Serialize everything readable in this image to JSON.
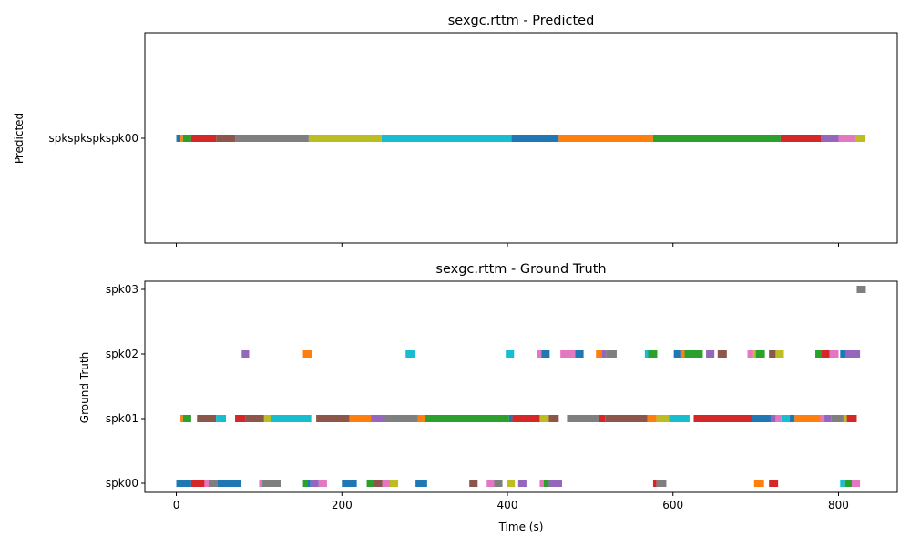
{
  "chart_data": [
    {
      "type": "timeline",
      "title": "sexgc.rttm - Predicted",
      "xlabel": "",
      "ylabel": "Predicted",
      "xlim": [
        -38,
        871
      ],
      "xticks": [
        0,
        200,
        400,
        600,
        800
      ],
      "show_xtick_labels": false,
      "rows": [
        "spkspkspkspk00"
      ],
      "segments": [
        {
          "row": "spkspkspkspk00",
          "start": 0,
          "end": 5,
          "color": "#1f77b4"
        },
        {
          "row": "spkspkspkspk00",
          "start": 5,
          "end": 8,
          "color": "#ff7f0e"
        },
        {
          "row": "spkspkspkspk00",
          "start": 8,
          "end": 18,
          "color": "#2ca02c"
        },
        {
          "row": "spkspkspkspk00",
          "start": 18,
          "end": 48,
          "color": "#d62728"
        },
        {
          "row": "spkspkspkspk00",
          "start": 48,
          "end": 71,
          "color": "#8c564b"
        },
        {
          "row": "spkspkspkspk00",
          "start": 71,
          "end": 160,
          "color": "#7f7f7f"
        },
        {
          "row": "spkspkspkspk00",
          "start": 160,
          "end": 248,
          "color": "#bcbd22"
        },
        {
          "row": "spkspkspkspk00",
          "start": 248,
          "end": 405,
          "color": "#17becf"
        },
        {
          "row": "spkspkspkspk00",
          "start": 405,
          "end": 462,
          "color": "#1f77b4"
        },
        {
          "row": "spkspkspkspk00",
          "start": 462,
          "end": 576,
          "color": "#ff7f0e"
        },
        {
          "row": "spkspkspkspk00",
          "start": 576,
          "end": 730,
          "color": "#2ca02c"
        },
        {
          "row": "spkspkspkspk00",
          "start": 730,
          "end": 779,
          "color": "#d62728"
        },
        {
          "row": "spkspkspkspk00",
          "start": 779,
          "end": 800,
          "color": "#9467bd"
        },
        {
          "row": "spkspkspkspk00",
          "start": 800,
          "end": 821,
          "color": "#e377c2"
        },
        {
          "row": "spkspkspkspk00",
          "start": 821,
          "end": 832,
          "color": "#bcbd22"
        }
      ]
    },
    {
      "type": "timeline",
      "title": "sexgc.rttm - Ground Truth",
      "xlabel": "Time (s)",
      "ylabel": "Ground Truth",
      "xlim": [
        -38,
        871
      ],
      "xticks": [
        0,
        200,
        400,
        600,
        800
      ],
      "show_xtick_labels": true,
      "rows": [
        "spk00",
        "spk01",
        "spk02",
        "spk03"
      ],
      "segments": [
        {
          "row": "spk00",
          "start": 0,
          "end": 18,
          "color": "#1f77b4"
        },
        {
          "row": "spk00",
          "start": 18,
          "end": 34,
          "color": "#d62728"
        },
        {
          "row": "spk00",
          "start": 34,
          "end": 39,
          "color": "#e377c2"
        },
        {
          "row": "spk00",
          "start": 39,
          "end": 50,
          "color": "#7f7f7f"
        },
        {
          "row": "spk00",
          "start": 50,
          "end": 78,
          "color": "#1f77b4"
        },
        {
          "row": "spk00",
          "start": 100,
          "end": 104,
          "color": "#e377c2"
        },
        {
          "row": "spk00",
          "start": 104,
          "end": 126,
          "color": "#7f7f7f"
        },
        {
          "row": "spk00",
          "start": 153,
          "end": 159,
          "color": "#2ca02c"
        },
        {
          "row": "spk00",
          "start": 159,
          "end": 162,
          "color": "#1f77b4"
        },
        {
          "row": "spk00",
          "start": 162,
          "end": 172,
          "color": "#9467bd"
        },
        {
          "row": "spk00",
          "start": 172,
          "end": 182,
          "color": "#e377c2"
        },
        {
          "row": "spk00",
          "start": 200,
          "end": 218,
          "color": "#1f77b4"
        },
        {
          "row": "spk00",
          "start": 230,
          "end": 239,
          "color": "#2ca02c"
        },
        {
          "row": "spk00",
          "start": 239,
          "end": 249,
          "color": "#8c564b"
        },
        {
          "row": "spk00",
          "start": 249,
          "end": 258,
          "color": "#e377c2"
        },
        {
          "row": "spk00",
          "start": 258,
          "end": 268,
          "color": "#bcbd22"
        },
        {
          "row": "spk00",
          "start": 289,
          "end": 303,
          "color": "#1f77b4"
        },
        {
          "row": "spk00",
          "start": 354,
          "end": 364,
          "color": "#8c564b"
        },
        {
          "row": "spk00",
          "start": 375,
          "end": 384,
          "color": "#e377c2"
        },
        {
          "row": "spk00",
          "start": 384,
          "end": 394,
          "color": "#7f7f7f"
        },
        {
          "row": "spk00",
          "start": 399,
          "end": 409,
          "color": "#bcbd22"
        },
        {
          "row": "spk00",
          "start": 413,
          "end": 423,
          "color": "#9467bd"
        },
        {
          "row": "spk00",
          "start": 439,
          "end": 444,
          "color": "#e377c2"
        },
        {
          "row": "spk00",
          "start": 444,
          "end": 450,
          "color": "#2ca02c"
        },
        {
          "row": "spk00",
          "start": 450,
          "end": 466,
          "color": "#9467bd"
        },
        {
          "row": "spk00",
          "start": 576,
          "end": 580,
          "color": "#d62728"
        },
        {
          "row": "spk00",
          "start": 580,
          "end": 592,
          "color": "#7f7f7f"
        },
        {
          "row": "spk00",
          "start": 698,
          "end": 710,
          "color": "#ff7f0e"
        },
        {
          "row": "spk00",
          "start": 716,
          "end": 727,
          "color": "#d62728"
        },
        {
          "row": "spk00",
          "start": 802,
          "end": 808,
          "color": "#17becf"
        },
        {
          "row": "spk00",
          "start": 808,
          "end": 816,
          "color": "#2ca02c"
        },
        {
          "row": "spk00",
          "start": 816,
          "end": 826,
          "color": "#e377c2"
        },
        {
          "row": "spk01",
          "start": 5,
          "end": 8,
          "color": "#ff7f0e"
        },
        {
          "row": "spk01",
          "start": 8,
          "end": 18,
          "color": "#2ca02c"
        },
        {
          "row": "spk01",
          "start": 25,
          "end": 48,
          "color": "#8c564b"
        },
        {
          "row": "spk01",
          "start": 48,
          "end": 60,
          "color": "#17becf"
        },
        {
          "row": "spk01",
          "start": 71,
          "end": 84,
          "color": "#d62728"
        },
        {
          "row": "spk01",
          "start": 84,
          "end": 106,
          "color": "#8c564b"
        },
        {
          "row": "spk01",
          "start": 106,
          "end": 114,
          "color": "#bcbd22"
        },
        {
          "row": "spk01",
          "start": 114,
          "end": 163,
          "color": "#17becf"
        },
        {
          "row": "spk01",
          "start": 169,
          "end": 209,
          "color": "#8c564b"
        },
        {
          "row": "spk01",
          "start": 209,
          "end": 235,
          "color": "#ff7f0e"
        },
        {
          "row": "spk01",
          "start": 235,
          "end": 252,
          "color": "#9467bd"
        },
        {
          "row": "spk01",
          "start": 252,
          "end": 292,
          "color": "#7f7f7f"
        },
        {
          "row": "spk01",
          "start": 292,
          "end": 300,
          "color": "#ff7f0e"
        },
        {
          "row": "spk01",
          "start": 300,
          "end": 402,
          "color": "#2ca02c"
        },
        {
          "row": "spk01",
          "start": 402,
          "end": 406,
          "color": "#1f77b4"
        },
        {
          "row": "spk01",
          "start": 406,
          "end": 439,
          "color": "#d62728"
        },
        {
          "row": "spk01",
          "start": 439,
          "end": 450,
          "color": "#bcbd22"
        },
        {
          "row": "spk01",
          "start": 450,
          "end": 462,
          "color": "#8c564b"
        },
        {
          "row": "spk01",
          "start": 472,
          "end": 510,
          "color": "#7f7f7f"
        },
        {
          "row": "spk01",
          "start": 510,
          "end": 518,
          "color": "#d62728"
        },
        {
          "row": "spk01",
          "start": 518,
          "end": 569,
          "color": "#8c564b"
        },
        {
          "row": "spk01",
          "start": 569,
          "end": 580,
          "color": "#ff7f0e"
        },
        {
          "row": "spk01",
          "start": 580,
          "end": 595,
          "color": "#bcbd22"
        },
        {
          "row": "spk01",
          "start": 595,
          "end": 620,
          "color": "#17becf"
        },
        {
          "row": "spk01",
          "start": 625,
          "end": 695,
          "color": "#d62728"
        },
        {
          "row": "spk01",
          "start": 695,
          "end": 718,
          "color": "#1f77b4"
        },
        {
          "row": "spk01",
          "start": 718,
          "end": 724,
          "color": "#9467bd"
        },
        {
          "row": "spk01",
          "start": 724,
          "end": 731,
          "color": "#e377c2"
        },
        {
          "row": "spk01",
          "start": 731,
          "end": 741,
          "color": "#17becf"
        },
        {
          "row": "spk01",
          "start": 741,
          "end": 747,
          "color": "#1f77b4"
        },
        {
          "row": "spk01",
          "start": 747,
          "end": 778,
          "color": "#ff7f0e"
        },
        {
          "row": "spk01",
          "start": 778,
          "end": 783,
          "color": "#e377c2"
        },
        {
          "row": "spk01",
          "start": 783,
          "end": 791,
          "color": "#9467bd"
        },
        {
          "row": "spk01",
          "start": 791,
          "end": 806,
          "color": "#7f7f7f"
        },
        {
          "row": "spk01",
          "start": 806,
          "end": 810,
          "color": "#bcbd22"
        },
        {
          "row": "spk01",
          "start": 810,
          "end": 822,
          "color": "#d62728"
        },
        {
          "row": "spk02",
          "start": 79,
          "end": 88,
          "color": "#9467bd"
        },
        {
          "row": "spk02",
          "start": 153,
          "end": 164,
          "color": "#ff7f0e"
        },
        {
          "row": "spk02",
          "start": 277,
          "end": 288,
          "color": "#17becf"
        },
        {
          "row": "spk02",
          "start": 398,
          "end": 408,
          "color": "#17becf"
        },
        {
          "row": "spk02",
          "start": 436,
          "end": 441,
          "color": "#e377c2"
        },
        {
          "row": "spk02",
          "start": 441,
          "end": 451,
          "color": "#1f77b4"
        },
        {
          "row": "spk02",
          "start": 464,
          "end": 482,
          "color": "#e377c2"
        },
        {
          "row": "spk02",
          "start": 482,
          "end": 492,
          "color": "#1f77b4"
        },
        {
          "row": "spk02",
          "start": 507,
          "end": 514,
          "color": "#ff7f0e"
        },
        {
          "row": "spk02",
          "start": 514,
          "end": 519,
          "color": "#9467bd"
        },
        {
          "row": "spk02",
          "start": 519,
          "end": 532,
          "color": "#7f7f7f"
        },
        {
          "row": "spk02",
          "start": 566,
          "end": 570,
          "color": "#17becf"
        },
        {
          "row": "spk02",
          "start": 570,
          "end": 581,
          "color": "#2ca02c"
        },
        {
          "row": "spk02",
          "start": 601,
          "end": 609,
          "color": "#1f77b4"
        },
        {
          "row": "spk02",
          "start": 609,
          "end": 614,
          "color": "#ff7f0e"
        },
        {
          "row": "spk02",
          "start": 614,
          "end": 636,
          "color": "#2ca02c"
        },
        {
          "row": "spk02",
          "start": 640,
          "end": 650,
          "color": "#9467bd"
        },
        {
          "row": "spk02",
          "start": 654,
          "end": 665,
          "color": "#8c564b"
        },
        {
          "row": "spk02",
          "start": 690,
          "end": 697,
          "color": "#e377c2"
        },
        {
          "row": "spk02",
          "start": 697,
          "end": 700,
          "color": "#bcbd22"
        },
        {
          "row": "spk02",
          "start": 700,
          "end": 711,
          "color": "#2ca02c"
        },
        {
          "row": "spk02",
          "start": 716,
          "end": 724,
          "color": "#8c564b"
        },
        {
          "row": "spk02",
          "start": 724,
          "end": 734,
          "color": "#bcbd22"
        },
        {
          "row": "spk02",
          "start": 772,
          "end": 779,
          "color": "#2ca02c"
        },
        {
          "row": "spk02",
          "start": 779,
          "end": 789,
          "color": "#d62728"
        },
        {
          "row": "spk02",
          "start": 789,
          "end": 800,
          "color": "#e377c2"
        },
        {
          "row": "spk02",
          "start": 802,
          "end": 809,
          "color": "#1f77b4"
        },
        {
          "row": "spk02",
          "start": 809,
          "end": 826,
          "color": "#9467bd"
        },
        {
          "row": "spk03",
          "start": 822,
          "end": 833,
          "color": "#7f7f7f"
        }
      ]
    }
  ]
}
